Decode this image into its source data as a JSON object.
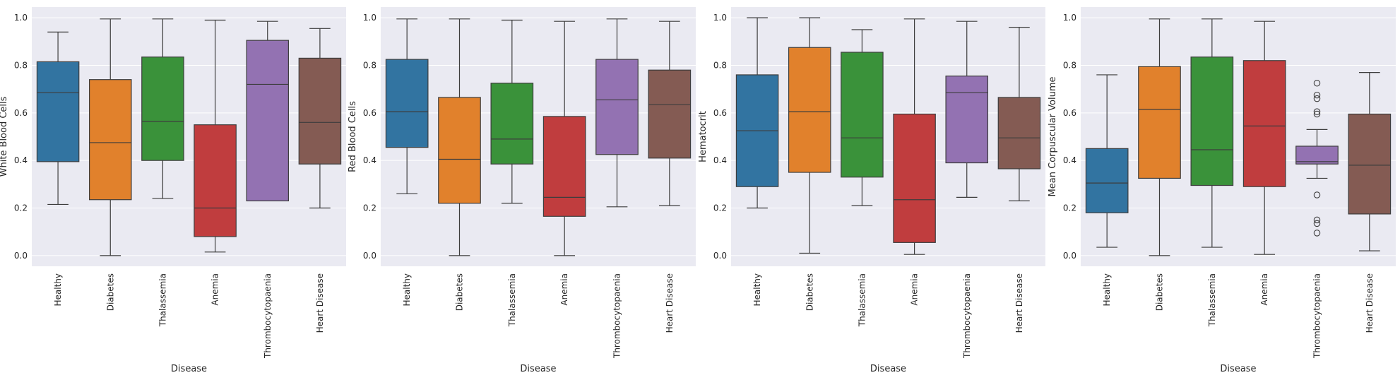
{
  "chart_data": [
    {
      "type": "box",
      "xlabel": "Disease",
      "ylabel": "White Blood Cells",
      "ylim": [
        -0.045,
        1.045
      ],
      "yticks": [
        "0.0",
        "0.2",
        "0.4",
        "0.6",
        "0.8",
        "1.0"
      ],
      "categories": [
        "Healthy",
        "Diabetes",
        "Thalassemia",
        "Anemia",
        "Thrombocytopaenia",
        "Heart Disease"
      ],
      "boxes": [
        {
          "min": 0.215,
          "q1": 0.395,
          "median": 0.685,
          "q3": 0.815,
          "max": 0.94,
          "outliers": []
        },
        {
          "min": 0.0,
          "q1": 0.235,
          "median": 0.475,
          "q3": 0.74,
          "max": 0.995,
          "outliers": []
        },
        {
          "min": 0.24,
          "q1": 0.4,
          "median": 0.565,
          "q3": 0.835,
          "max": 0.995,
          "outliers": []
        },
        {
          "min": 0.015,
          "q1": 0.08,
          "median": 0.2,
          "q3": 0.55,
          "max": 0.99,
          "outliers": []
        },
        {
          "min": 0.23,
          "q1": 0.23,
          "median": 0.72,
          "q3": 0.905,
          "max": 0.985,
          "outliers": []
        },
        {
          "min": 0.2,
          "q1": 0.385,
          "median": 0.56,
          "q3": 0.83,
          "max": 0.955,
          "outliers": []
        }
      ]
    },
    {
      "type": "box",
      "xlabel": "Disease",
      "ylabel": "Red Blood Cells",
      "ylim": [
        -0.045,
        1.045
      ],
      "yticks": [
        "0.0",
        "0.2",
        "0.4",
        "0.6",
        "0.8",
        "1.0"
      ],
      "categories": [
        "Healthy",
        "Diabetes",
        "Thalassemia",
        "Anemia",
        "Thrombocytopaenia",
        "Heart Disease"
      ],
      "boxes": [
        {
          "min": 0.26,
          "q1": 0.455,
          "median": 0.605,
          "q3": 0.825,
          "max": 0.995,
          "outliers": []
        },
        {
          "min": 0.0,
          "q1": 0.22,
          "median": 0.405,
          "q3": 0.665,
          "max": 0.995,
          "outliers": []
        },
        {
          "min": 0.22,
          "q1": 0.385,
          "median": 0.49,
          "q3": 0.725,
          "max": 0.99,
          "outliers": []
        },
        {
          "min": 0.0,
          "q1": 0.165,
          "median": 0.245,
          "q3": 0.585,
          "max": 0.985,
          "outliers": []
        },
        {
          "min": 0.205,
          "q1": 0.425,
          "median": 0.655,
          "q3": 0.825,
          "max": 0.995,
          "outliers": []
        },
        {
          "min": 0.21,
          "q1": 0.41,
          "median": 0.635,
          "q3": 0.78,
          "max": 0.985,
          "outliers": []
        }
      ]
    },
    {
      "type": "box",
      "xlabel": "Disease",
      "ylabel": "Hematocrit",
      "ylim": [
        -0.045,
        1.045
      ],
      "yticks": [
        "0.0",
        "0.2",
        "0.4",
        "0.6",
        "0.8",
        "1.0"
      ],
      "categories": [
        "Healthy",
        "Diabetes",
        "Thalassemia",
        "Anemia",
        "Thrombocytopaenia",
        "Heart Disease"
      ],
      "boxes": [
        {
          "min": 0.2,
          "q1": 0.29,
          "median": 0.525,
          "q3": 0.76,
          "max": 1.0,
          "outliers": []
        },
        {
          "min": 0.01,
          "q1": 0.35,
          "median": 0.605,
          "q3": 0.875,
          "max": 1.0,
          "outliers": []
        },
        {
          "min": 0.21,
          "q1": 0.33,
          "median": 0.495,
          "q3": 0.855,
          "max": 0.95,
          "outliers": []
        },
        {
          "min": 0.005,
          "q1": 0.055,
          "median": 0.235,
          "q3": 0.595,
          "max": 0.995,
          "outliers": []
        },
        {
          "min": 0.245,
          "q1": 0.39,
          "median": 0.685,
          "q3": 0.755,
          "max": 0.985,
          "outliers": []
        },
        {
          "min": 0.23,
          "q1": 0.365,
          "median": 0.495,
          "q3": 0.665,
          "max": 0.96,
          "outliers": []
        }
      ]
    },
    {
      "type": "box",
      "xlabel": "Disease",
      "ylabel": "Mean Corpuscular Volume",
      "ylim": [
        -0.045,
        1.045
      ],
      "yticks": [
        "0.0",
        "0.2",
        "0.4",
        "0.6",
        "0.8",
        "1.0"
      ],
      "categories": [
        "Healthy",
        "Diabetes",
        "Thalassemia",
        "Anemia",
        "Thrombocytopaenia",
        "Heart Disease"
      ],
      "boxes": [
        {
          "min": 0.035,
          "q1": 0.18,
          "median": 0.305,
          "q3": 0.45,
          "max": 0.76,
          "outliers": []
        },
        {
          "min": 0.0,
          "q1": 0.325,
          "median": 0.615,
          "q3": 0.795,
          "max": 0.995,
          "outliers": []
        },
        {
          "min": 0.035,
          "q1": 0.295,
          "median": 0.445,
          "q3": 0.835,
          "max": 0.995,
          "outliers": []
        },
        {
          "min": 0.005,
          "q1": 0.29,
          "median": 0.545,
          "q3": 0.82,
          "max": 0.985,
          "outliers": []
        },
        {
          "min": 0.325,
          "q1": 0.385,
          "median": 0.395,
          "q3": 0.46,
          "max": 0.53,
          "outliers": [
            0.725,
            0.675,
            0.66,
            0.605,
            0.595,
            0.255,
            0.15,
            0.135,
            0.095
          ]
        },
        {
          "min": 0.02,
          "q1": 0.175,
          "median": 0.38,
          "q3": 0.595,
          "max": 0.77,
          "outliers": []
        }
      ]
    }
  ],
  "palette": [
    "#3274a1",
    "#e1812c",
    "#3a923a",
    "#c03d3e",
    "#9372b2",
    "#845b53"
  ],
  "style": {
    "plot_background": "#eaeaf2",
    "grid": "#ffffff",
    "line": "#3d3d3d",
    "text": "#262626"
  }
}
